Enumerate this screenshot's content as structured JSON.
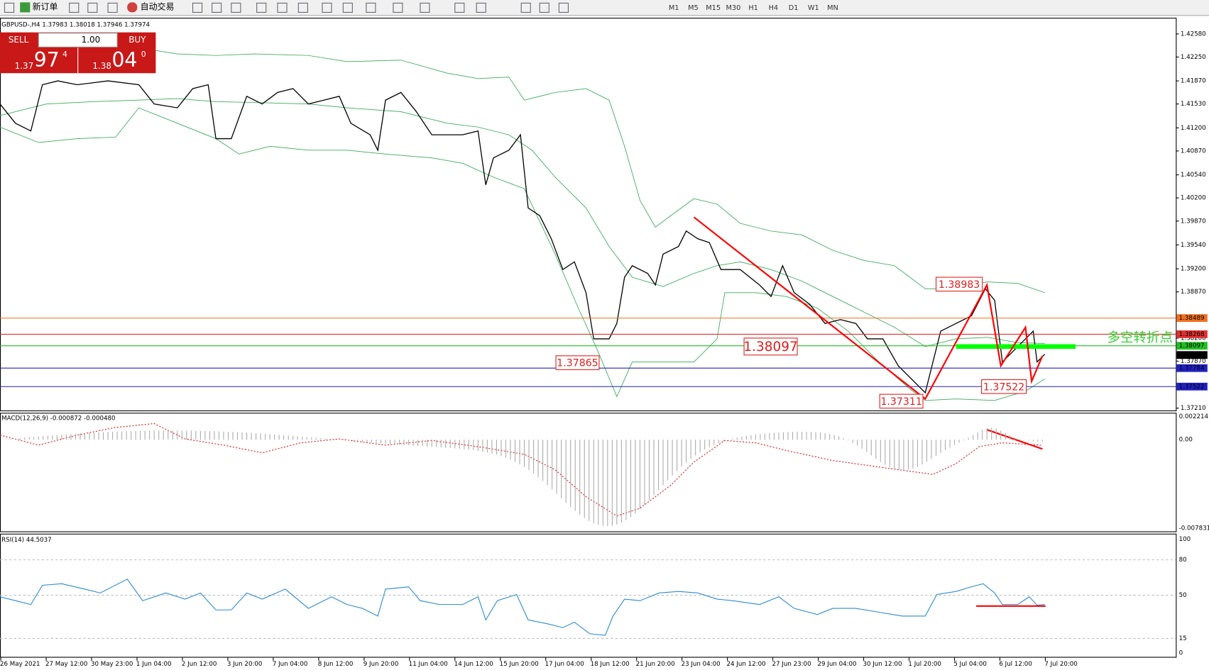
{
  "toolbar": {
    "new_order": "新订单",
    "auto_trade": "自动交易",
    "timeframes": [
      "M1",
      "M5",
      "M15",
      "M30",
      "H1",
      "H4",
      "D1",
      "W1",
      "MN"
    ]
  },
  "chart": {
    "header": "GBPUSD-,H4  1.37983 1.38018 1.37946 1.37974",
    "trade_panel": {
      "sell": "SELL",
      "buy": "BUY",
      "lot": "1.00",
      "sell_small": "1.37",
      "sell_big": "97",
      "sell_sup": "4",
      "buy_small": "1.38",
      "buy_big": "04",
      "buy_sup": "0"
    },
    "price_axis": [
      "1.42580",
      "1.42250",
      "1.41870",
      "1.41530",
      "1.41200",
      "1.40870",
      "1.40540",
      "1.40200",
      "1.39870",
      "1.39540",
      "1.39200",
      "1.38870",
      "1.38200",
      "1.37870",
      "1.37210"
    ],
    "level_labels": [
      "1.38489",
      "1.38268",
      "1.38097",
      "1.37974",
      "1.37784",
      "1.37522"
    ],
    "annotations": [
      "1.38983",
      "1.37865",
      "1.38097",
      "1.37311",
      "1.37522",
      "多空转折点"
    ]
  },
  "macd": {
    "header": "MACD(12,26,9) -0.000872 -0.000480",
    "axis": [
      "0.002214",
      "0.00",
      "-0.007831"
    ]
  },
  "rsi": {
    "header": "RSI(14) 44.5037",
    "axis": [
      "100",
      "80",
      "50",
      "15",
      "0"
    ]
  },
  "time_axis": [
    "26 May 2021",
    "27 May 12:00",
    "30 May 23:00",
    "1 Jun 04:00",
    "2 Jun 12:00",
    "3 Jun 20:00",
    "7 Jun 04:00",
    "8 Jun 12:00",
    "9 Jun 20:00",
    "11 Jun 04:00",
    "14 Jun 12:00",
    "15 Jun 20:00",
    "17 Jun 04:00",
    "18 Jun 12:00",
    "21 Jun 20:00",
    "23 Jun 04:00",
    "24 Jun 12:00",
    "27 Jun 23:00",
    "29 Jun 04:00",
    "30 Jun 12:00",
    "1 Jul 20:00",
    "5 Jul 04:00",
    "6 Jul 12:00",
    "7 Jul 20:00"
  ]
}
